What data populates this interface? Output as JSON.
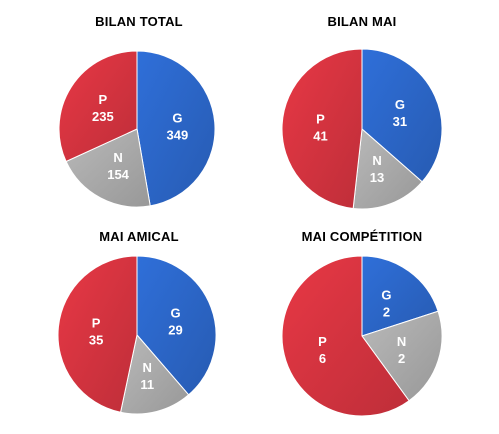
{
  "colors": {
    "G": "#2f6fd9",
    "P": "#e83845",
    "N": "#b9b9b9"
  },
  "chart_data": [
    {
      "type": "pie",
      "title": "BILAN TOTAL",
      "slices": [
        {
          "label": "G",
          "value": 349
        },
        {
          "label": "N",
          "value": 154
        },
        {
          "label": "P",
          "value": 235
        }
      ]
    },
    {
      "type": "pie",
      "title": "BILAN MAI",
      "slices": [
        {
          "label": "G",
          "value": 31
        },
        {
          "label": "N",
          "value": 13
        },
        {
          "label": "P",
          "value": 41
        }
      ]
    },
    {
      "type": "pie",
      "title": "MAI AMICAL",
      "slices": [
        {
          "label": "G",
          "value": 29
        },
        {
          "label": "N",
          "value": 11
        },
        {
          "label": "P",
          "value": 35
        }
      ]
    },
    {
      "type": "pie",
      "title": "MAI COMPÉTITION",
      "slices": [
        {
          "label": "G",
          "value": 2
        },
        {
          "label": "N",
          "value": 2
        },
        {
          "label": "P",
          "value": 6
        }
      ]
    }
  ]
}
